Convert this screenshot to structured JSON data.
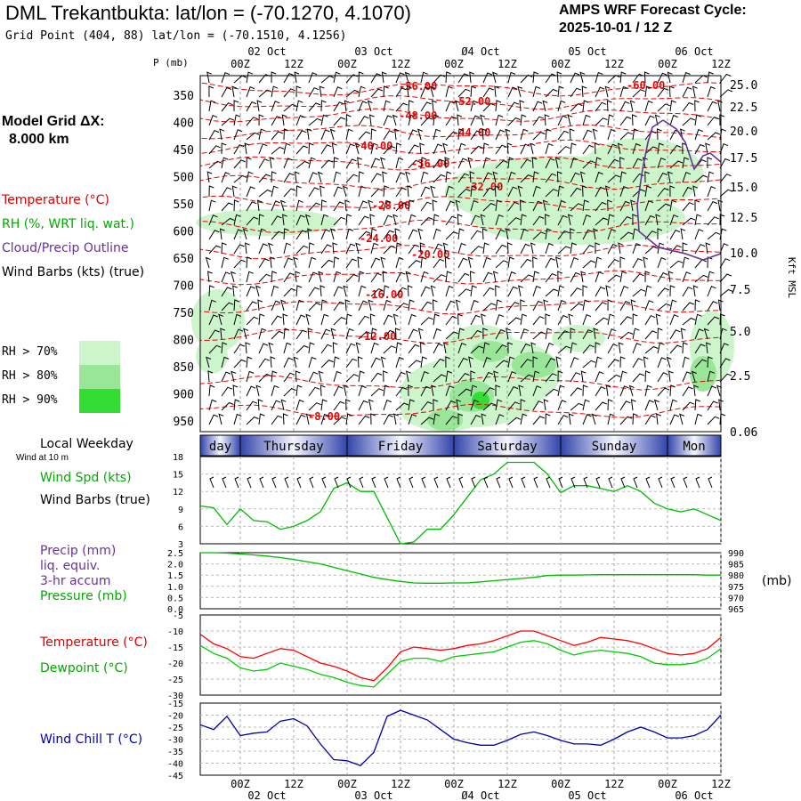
{
  "header": {
    "title": "DML Trekantbukta:  lat/lon = (-70.1270, 4.1070)",
    "grid_point": "Grid Point (404, 88) lat/lon = (-70.1510, 4.1256)",
    "cycle_line1": "AMPS WRF Forecast Cycle:",
    "cycle_line2": "2025-10-01 / 12  Z"
  },
  "sidebar": {
    "model_grid_label": "Model Grid ΔX:",
    "model_grid_value": "8.000 km",
    "temp_label": "Temperature (°C)",
    "rh_label": "RH (%, WRT liq. wat.)",
    "cloud_label": "Cloud/Precip Outline",
    "barbs_label": "Wind Barbs (kts) (true)",
    "rh70": "RH > 70%",
    "rh80": "RH > 80%",
    "rh90": "RH > 90%",
    "colors": {
      "rh70": "#ccf5cc",
      "rh80": "#99e699",
      "rh90": "#33dd33",
      "temp": "#ff0000",
      "cloud": "#663399"
    }
  },
  "chart_data": [
    {
      "type": "heatmap",
      "title": "Time-height cross section",
      "p_axis_label": "P (mb)",
      "p_ticks": [
        "350",
        "400",
        "450",
        "500",
        "550",
        "600",
        "650",
        "700",
        "750",
        "800",
        "850",
        "900",
        "950"
      ],
      "height_axis_label": "Kft MSL",
      "height_ticks": [
        "25.0",
        "22.5",
        "20.0",
        "17.5",
        "15.0",
        "12.5",
        "10.0",
        "7.5",
        "5.0",
        "2.5",
        "0.06"
      ],
      "time_top_hours": [
        "00Z",
        "12Z",
        "00Z",
        "12Z",
        "00Z",
        "12Z",
        "00Z",
        "12Z",
        "00Z",
        "12Z"
      ],
      "time_top_dates": [
        "02 Oct",
        "03 Oct",
        "Ø4 Oct",
        "05 Oct",
        "06 Oct"
      ],
      "temperature_contours": [
        "-56.00",
        "-52.00",
        "-48.00",
        "-44.00",
        "-40.00",
        "-36.00",
        "-32.00",
        "-28.00",
        "-24.00",
        "-20.00",
        "-16.00",
        "-12.00",
        "-8.00",
        "-60.00"
      ]
    },
    {
      "type": "table",
      "title": "Local Weekday",
      "days": [
        "day",
        "Thursday",
        "Friday",
        "Saturday",
        "Sunday",
        "Mon"
      ]
    },
    {
      "type": "line",
      "title": "Wind Spd (kts)",
      "note": "Wind at 10 m",
      "label1": "Wind Spd (kts)",
      "label2": "Wind Barbs (true)",
      "ylim": [
        3,
        18
      ],
      "yticks": [
        "18",
        "15",
        "12",
        "9",
        "6",
        "3"
      ],
      "series": [
        {
          "name": "Wind Spd",
          "color": "#00bb00",
          "values": [
            9.5,
            9.2,
            6.3,
            9.0,
            7.0,
            6.8,
            5.5,
            6.0,
            7.0,
            8.5,
            12.5,
            13.5,
            12.0,
            12.0,
            7.5,
            3.0,
            3.3,
            5.5,
            5.5,
            8.0,
            11.0,
            14.0,
            15.0,
            17.0,
            17.0,
            17.0,
            15.0,
            11.8,
            13.0,
            13.0,
            12.5,
            12.0,
            13.0,
            12.0,
            10.0,
            9.0,
            8.5,
            9.0,
            8.0,
            7.0
          ]
        }
      ]
    },
    {
      "type": "line",
      "title": "Precip / Pressure",
      "label1": "Precip (mm)",
      "label2": "liq. equiv.",
      "label3": "3-hr accum",
      "label4": "Pressure (mb)",
      "right_unit": "(mb)",
      "ylim": [
        0,
        2.5
      ],
      "yticks": [
        "2.5",
        "2.0",
        "1.5",
        "1.0",
        "0.5",
        "0.0"
      ],
      "ylim_right": [
        965,
        990
      ],
      "yticks_right": [
        "990",
        "985",
        "980",
        "975",
        "970",
        "965"
      ],
      "series": [
        {
          "name": "Pressure (mb)",
          "color": "#00bb00",
          "values": [
            990.0,
            990.0,
            989.8,
            989.5,
            989.0,
            988.5,
            987.8,
            987.0,
            986.0,
            985.0,
            983.5,
            982.0,
            980.5,
            979.0,
            978.0,
            977.2,
            976.5,
            976.4,
            976.4,
            976.5,
            976.5,
            977.0,
            977.5,
            978.0,
            978.5,
            979.0,
            979.8,
            980.0,
            980.0,
            980.1,
            980.2,
            980.2,
            980.2,
            980.2,
            980.2,
            980.2,
            980.2,
            980.2,
            980.0,
            980.0
          ]
        }
      ]
    },
    {
      "type": "line",
      "title": "Temperature / Dewpoint",
      "label1": "Temperature (°C)",
      "label2": "Dewpoint (°C)",
      "ylim": [
        -30,
        -5
      ],
      "yticks": [
        "-5",
        "-10",
        "-15",
        "-20",
        "-25",
        "-30"
      ],
      "series": [
        {
          "name": "Temperature (°C)",
          "color": "#ff0000",
          "values": [
            -11.0,
            -14.0,
            -15.5,
            -18.0,
            -18.5,
            -17.0,
            -15.5,
            -16.0,
            -18.0,
            -20.0,
            -21.0,
            -22.5,
            -24.5,
            -25.5,
            -21.5,
            -16.5,
            -15.0,
            -15.5,
            -16.0,
            -15.5,
            -14.5,
            -14.0,
            -13.0,
            -11.5,
            -10.0,
            -10.0,
            -11.5,
            -13.0,
            -14.5,
            -13.5,
            -12.0,
            -12.5,
            -13.0,
            -14.0,
            -15.5,
            -17.0,
            -17.5,
            -17.0,
            -15.5,
            -12.0
          ]
        },
        {
          "name": "Dewpoint (°C)",
          "color": "#00cc00",
          "values": [
            -14.5,
            -17.0,
            -18.5,
            -21.5,
            -22.5,
            -22.0,
            -20.0,
            -21.0,
            -22.0,
            -23.5,
            -24.5,
            -26.0,
            -27.0,
            -27.5,
            -23.5,
            -19.5,
            -18.5,
            -18.5,
            -19.5,
            -18.0,
            -17.5,
            -17.0,
            -16.5,
            -15.0,
            -13.5,
            -13.0,
            -14.0,
            -16.0,
            -17.5,
            -16.5,
            -16.0,
            -16.5,
            -17.0,
            -18.0,
            -20.0,
            -20.5,
            -20.5,
            -20.0,
            -18.5,
            -15.5
          ]
        }
      ]
    },
    {
      "type": "line",
      "title": "Wind Chill T (°C)",
      "label1": "Wind Chill T (°C)",
      "ylim": [
        -45,
        -15
      ],
      "yticks": [
        "-15",
        "-20",
        "-25",
        "-30",
        "-35",
        "-40",
        "-45"
      ],
      "series": [
        {
          "name": "Wind Chill T",
          "color": "#0000aa",
          "values": [
            -24.0,
            -26.0,
            -20.5,
            -28.5,
            -27.5,
            -27.0,
            -22.5,
            -21.5,
            -24.5,
            -32.0,
            -38.5,
            -39.0,
            -41.0,
            -35.5,
            -20.5,
            -18.0,
            -20.0,
            -22.0,
            -26.0,
            -30.0,
            -31.5,
            -32.5,
            -32.5,
            -30.5,
            -28.0,
            -27.0,
            -28.5,
            -30.5,
            -32.0,
            -32.0,
            -32.5,
            -30.0,
            -27.0,
            -25.0,
            -27.0,
            -29.5,
            -29.5,
            -28.5,
            -26.0,
            -20.0
          ]
        }
      ]
    }
  ],
  "bottom_axis": {
    "hours": [
      "00Z",
      "12Z",
      "00Z",
      "12Z",
      "00Z",
      "12Z",
      "00Z",
      "12Z",
      "00Z",
      "12Z"
    ],
    "dates": [
      "02 Oct",
      "03 Oct",
      "Ø4 Oct",
      "05 Oct",
      "06 Oct"
    ]
  },
  "lower_labels": {
    "local_weekday": "Local Weekday",
    "wind_at": "Wind at 10 m"
  }
}
